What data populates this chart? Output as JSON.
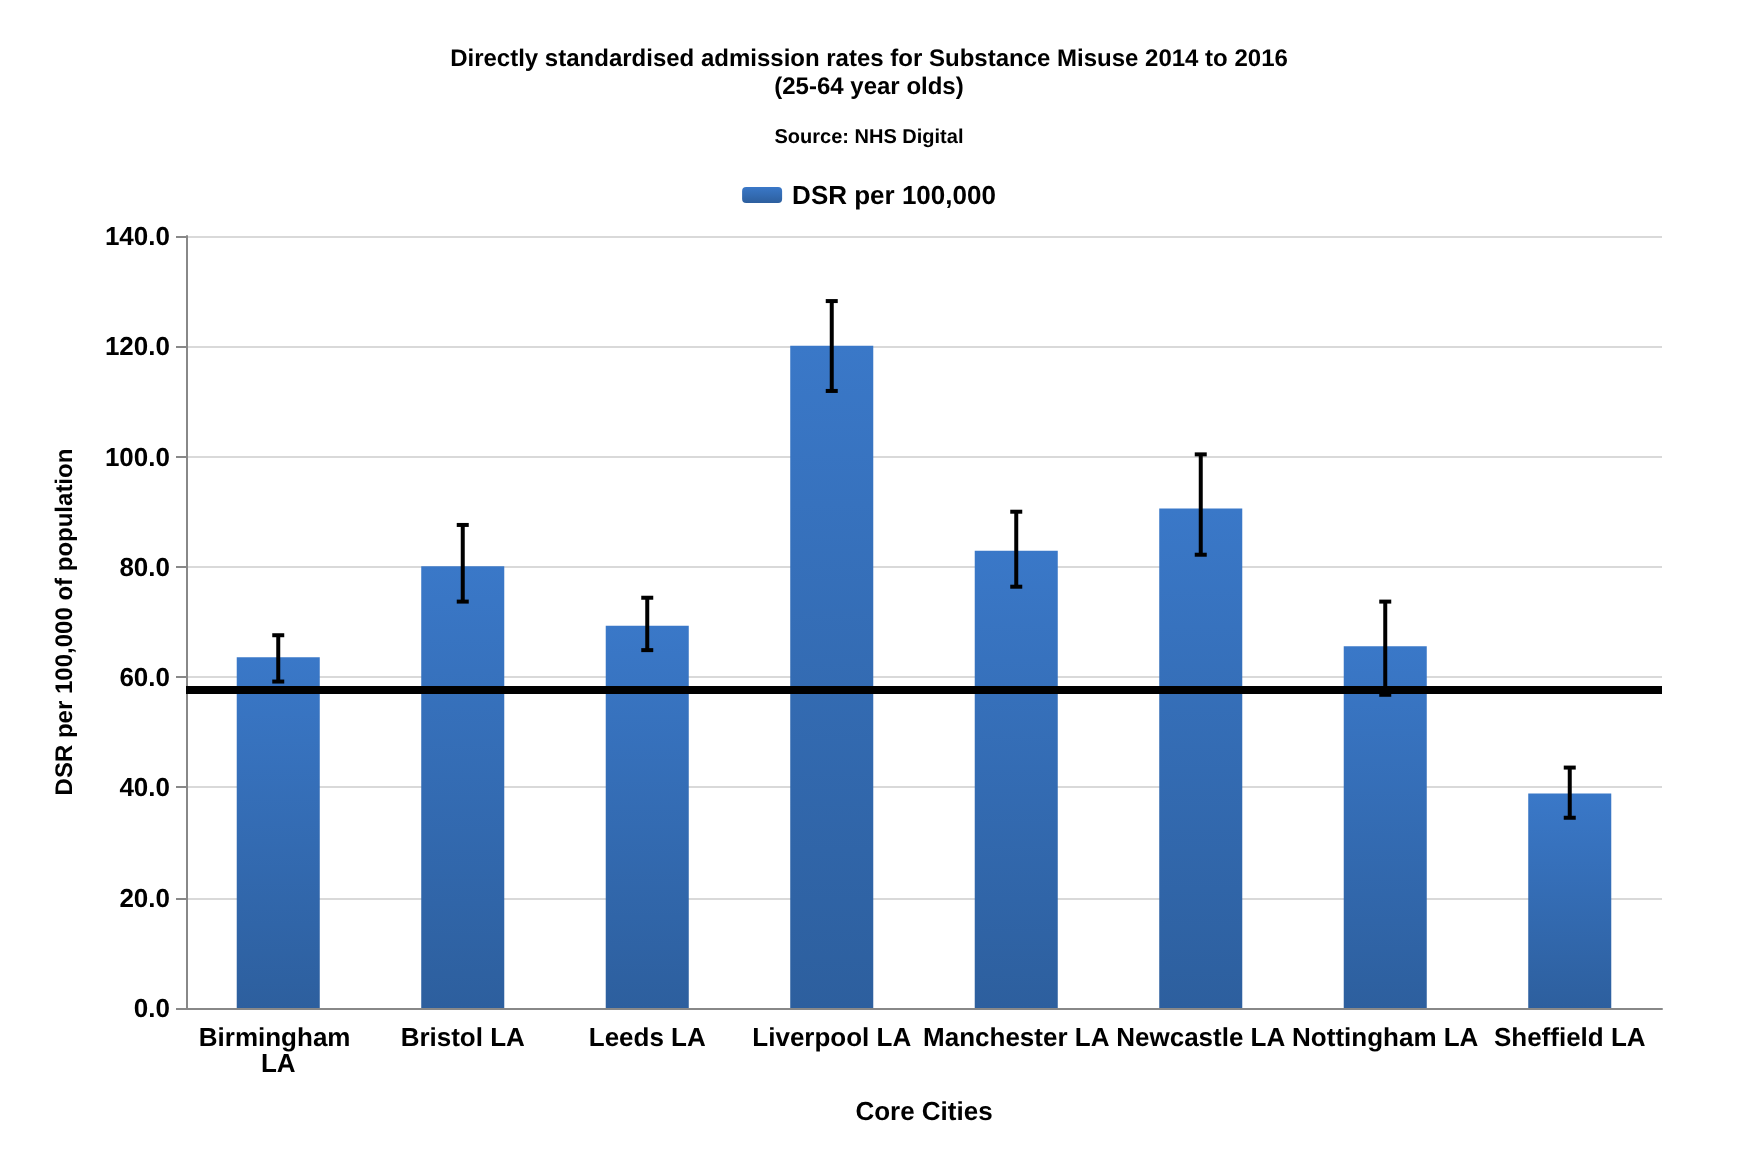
{
  "chart_data": {
    "type": "bar",
    "title": "Directly standardised admission rates for Substance Misuse 2014 to 2016",
    "subtitle": "(25-64 year olds)",
    "annotations": [
      "Source: NHS Digital"
    ],
    "xlabel": "Core Cities",
    "ylabel": "DSR per 100,000 of population",
    "categories": [
      "Birmingham LA",
      "Bristol LA",
      "Leeds LA",
      "Liverpool LA",
      "Manchester LA",
      "Newcastle LA",
      "Nottingham LA",
      "Sheffield LA"
    ],
    "series": [
      {
        "name": "DSR per 100,000",
        "color": "#3a78c8",
        "values": [
          63.6,
          80.1,
          69.3,
          120.1,
          82.9,
          90.6,
          65.6,
          38.9
        ],
        "errors": [
          [
            59.2,
            67.6
          ],
          [
            73.7,
            87.6
          ],
          [
            64.9,
            74.4
          ],
          [
            111.9,
            128.2
          ],
          [
            76.4,
            90.0
          ],
          [
            82.2,
            100.4
          ],
          [
            56.8,
            73.7
          ],
          [
            34.5,
            43.6
          ]
        ]
      }
    ],
    "ylim": [
      0,
      140
    ],
    "yticks": [
      {
        "value": 0,
        "label": "0.0"
      },
      {
        "value": 20,
        "label": "20.0"
      },
      {
        "value": 40,
        "label": "40.0"
      },
      {
        "value": 60,
        "label": "60.0"
      },
      {
        "value": 80,
        "label": "80.0"
      },
      {
        "value": 100,
        "label": "100.0"
      },
      {
        "value": 120,
        "label": "120.0"
      },
      {
        "value": 140,
        "label": "140.0"
      }
    ],
    "ref_lines": [
      {
        "axis": "y",
        "value": 57.8,
        "color": "#000000"
      }
    ],
    "grid": "y",
    "legend": "top"
  }
}
